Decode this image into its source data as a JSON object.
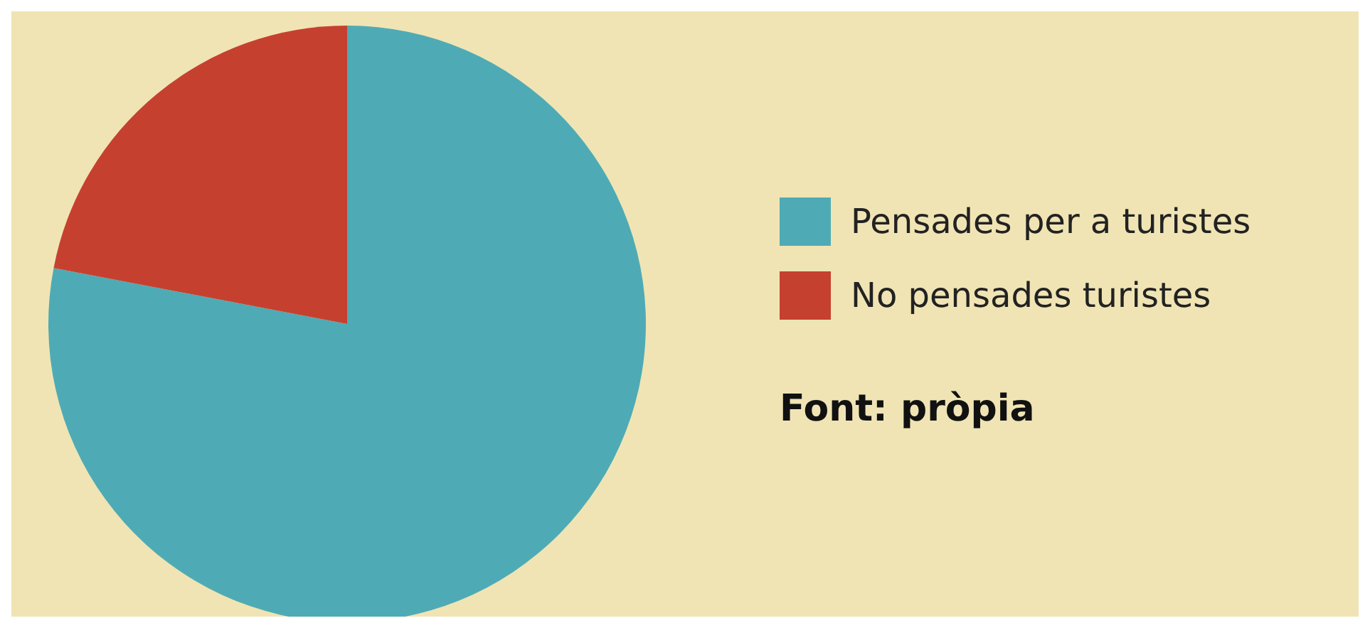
{
  "chart_data": {
    "type": "pie",
    "categories": [
      "Pensades per a turistes",
      "No pensades turistes"
    ],
    "values": [
      78,
      22
    ],
    "colors": [
      "#4eabb5",
      "#c64030"
    ],
    "legend": "right",
    "annotations": [
      "Font: pròpia"
    ]
  }
}
